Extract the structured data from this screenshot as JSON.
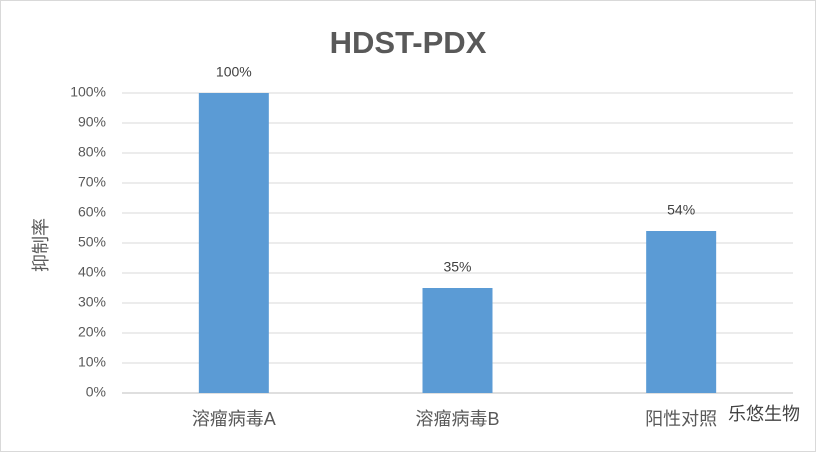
{
  "chart_data": {
    "type": "bar",
    "title": "HDST-PDX",
    "y_label": "抑制率",
    "categories": [
      "溶瘤病毒A",
      "溶瘤病毒B",
      "阳性对照"
    ],
    "values": [
      100,
      35,
      54
    ],
    "value_labels": [
      "100%",
      "35%",
      "54%"
    ],
    "color": "#5b9bd5",
    "ylim": [
      0,
      100
    ],
    "yticks": [
      {
        "value": 0,
        "label": "0%"
      },
      {
        "value": 10,
        "label": "10%"
      },
      {
        "value": 20,
        "label": "20%"
      },
      {
        "value": 30,
        "label": "30%"
      },
      {
        "value": 40,
        "label": "40%"
      },
      {
        "value": 50,
        "label": "50%"
      },
      {
        "value": 60,
        "label": "60%"
      },
      {
        "value": 70,
        "label": "70%"
      },
      {
        "value": 80,
        "label": "80%"
      },
      {
        "value": 90,
        "label": "90%"
      },
      {
        "value": 100,
        "label": "100%"
      }
    ],
    "grid": true,
    "watermark": "乐悠生物"
  }
}
